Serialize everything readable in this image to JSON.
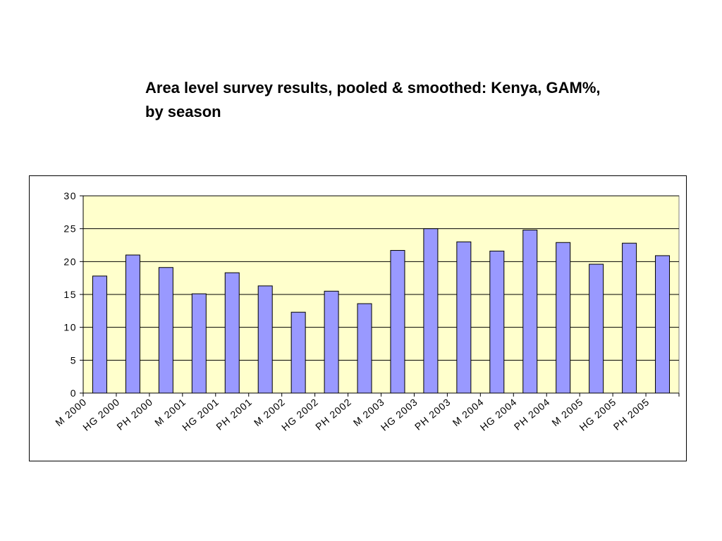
{
  "title": "Area level survey results, pooled & smoothed: Kenya, GAM%, by season",
  "colors": {
    "plot_background": "#ffffcc",
    "bar_fill": "#9999ff",
    "bar_stroke": "#000000",
    "gridline": "#000000"
  },
  "chart_data": {
    "type": "bar",
    "title": "",
    "xlabel": "",
    "ylabel": "",
    "ylim": [
      0,
      30
    ],
    "yticks": [
      0,
      5,
      10,
      15,
      20,
      25,
      30
    ],
    "grid": true,
    "legend": "none",
    "categories": [
      "M 2000",
      "HG 2000",
      "PH 2000",
      "M 2001",
      "HG 2001",
      "PH 2001",
      "M 2002",
      "HG 2002",
      "PH 2002",
      "M 2003",
      "HG 2003",
      "PH 2003",
      "M 2004",
      "HG 2004",
      "PH 2004",
      "M 2005",
      "HG 2005",
      "PH 2005"
    ],
    "values": [
      17.8,
      21.0,
      19.1,
      15.1,
      18.3,
      16.3,
      12.3,
      15.5,
      13.6,
      21.7,
      25.0,
      23.0,
      21.6,
      24.8,
      22.9,
      19.6,
      22.8,
      20.9
    ]
  }
}
